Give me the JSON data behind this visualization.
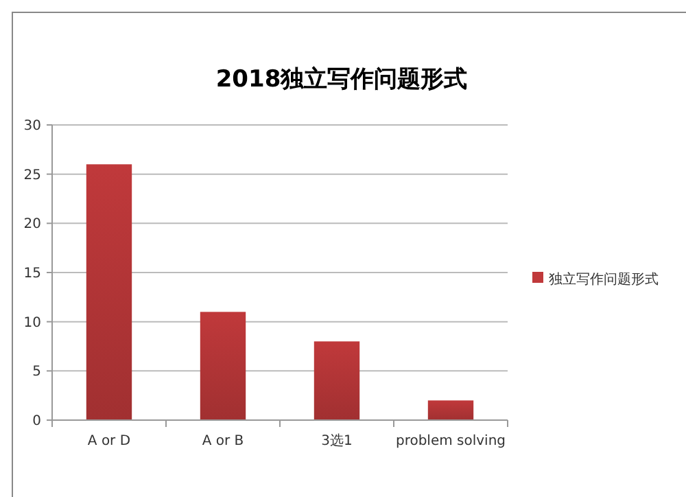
{
  "chart_data": {
    "type": "bar",
    "title": "2018独立写作问题形式",
    "categories": [
      "A or D",
      "A or B",
      "3选1",
      "problem solving"
    ],
    "series": [
      {
        "name": "独立写作问题形式",
        "color": "#c0393b",
        "values": [
          26,
          11,
          8,
          2
        ]
      }
    ],
    "ylim": [
      0,
      30
    ],
    "yticks": [
      0,
      5,
      10,
      15,
      20,
      25,
      30
    ],
    "grid": "y",
    "legend": "right"
  }
}
